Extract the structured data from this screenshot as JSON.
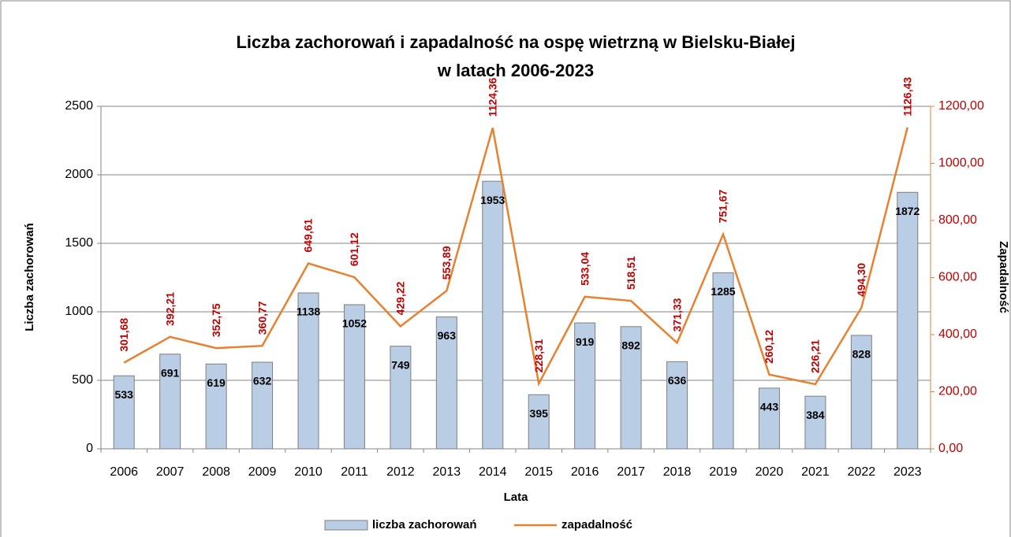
{
  "chart_data": {
    "type": "bar-line",
    "title": [
      "Liczba zachorowań i zapadalność na ospę wietrzną w Bielsku-Białej",
      "w latach 2006-2023"
    ],
    "x_label": "Lata",
    "y_label": "Liczba zachorowań",
    "y2_label": "Zapadalność",
    "categories": [
      "2006",
      "2007",
      "2008",
      "2009",
      "2010",
      "2011",
      "2012",
      "2013",
      "2014",
      "2015",
      "2016",
      "2017",
      "2018",
      "2019",
      "2020",
      "2021",
      "2022",
      "2023"
    ],
    "series": [
      {
        "name": "liczba zachorowań",
        "type": "bar",
        "color": "#b9cde5",
        "values": [
          533,
          691,
          619,
          632,
          1138,
          1052,
          749,
          963,
          1953,
          395,
          919,
          892,
          636,
          1285,
          443,
          384,
          828,
          1872
        ]
      },
      {
        "name": "zapadalność",
        "type": "line",
        "axis": "y2",
        "color": "#e8812f",
        "values": [
          301.68,
          392.21,
          352.75,
          360.77,
          649.61,
          601.12,
          429.22,
          553.89,
          1124.36,
          228.31,
          533.04,
          518.51,
          371.33,
          751.67,
          260.12,
          226.21,
          494.3,
          1126.43
        ],
        "value_labels": [
          "301,68",
          "392,21",
          "352,75",
          "360,77",
          "649,61",
          "601,12",
          "429,22",
          "553,89",
          "1124,36",
          "228,31",
          "533,04",
          "518,51",
          "371,33",
          "751,67",
          "260,12",
          "226,21",
          "494,30",
          "1126,43"
        ]
      }
    ],
    "ylim": [
      0,
      2500
    ],
    "yticks": [
      0,
      500,
      1000,
      1500,
      2000,
      2500
    ],
    "y2lim": [
      0,
      1200
    ],
    "y2ticks": [
      {
        "value": 0,
        "label": "0,00"
      },
      {
        "value": 200,
        "label": "200,00"
      },
      {
        "value": 400,
        "label": "400,00"
      },
      {
        "value": 600,
        "label": "600,00"
      },
      {
        "value": 800,
        "label": "800,00"
      },
      {
        "value": 1000,
        "label": "1000,00"
      },
      {
        "value": 1200,
        "label": "1200,00"
      }
    ],
    "grid": true,
    "legend": "bottom"
  }
}
